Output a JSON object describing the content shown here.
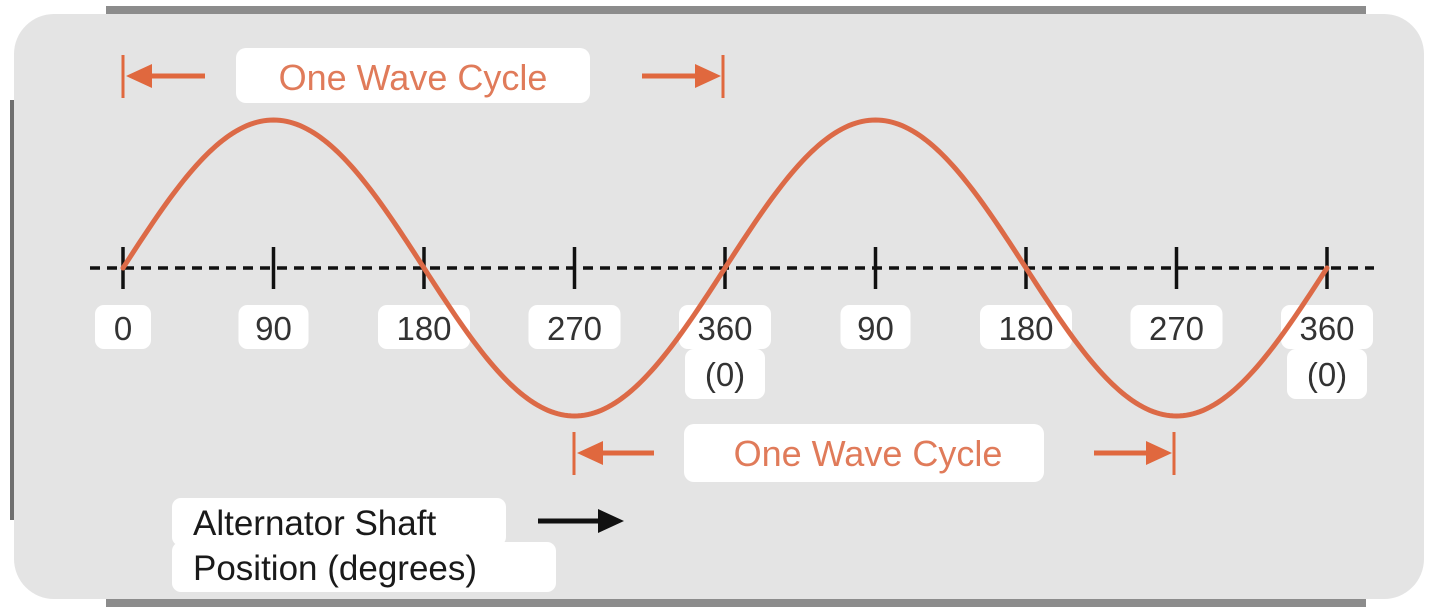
{
  "diagram": {
    "cycle_label": "One Wave Cycle",
    "x_axis": {
      "unit": "degrees",
      "ticks": [
        {
          "label": "0",
          "sub": ""
        },
        {
          "label": "90",
          "sub": ""
        },
        {
          "label": "180",
          "sub": ""
        },
        {
          "label": "270",
          "sub": ""
        },
        {
          "label": "360",
          "sub": "(0)"
        },
        {
          "label": "90",
          "sub": ""
        },
        {
          "label": "180",
          "sub": ""
        },
        {
          "label": "270",
          "sub": ""
        },
        {
          "label": "360",
          "sub": "(0)"
        }
      ]
    },
    "caption": {
      "line1": "Alternator Shaft",
      "line2": "Position (degrees)"
    },
    "wave": {
      "cycles": 2,
      "degrees_per_cycle": 360
    },
    "colors": {
      "wave": "#dc6a47",
      "panel_fill": "#e4e4e4",
      "frame": "#8c8c8c",
      "axis": "#111111",
      "label_box": "#ffffff",
      "label_text": "#333333",
      "cycle_text": "#e07b5a"
    },
    "icons": [
      "left-arrow-icon",
      "right-arrow-icon",
      "black-right-arrow-icon"
    ]
  }
}
